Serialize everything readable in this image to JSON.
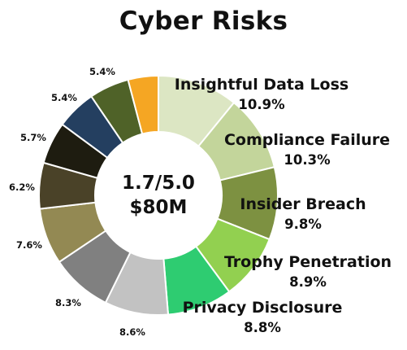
{
  "chart_data": {
    "type": "donut",
    "title": "Cyber Risks",
    "center": {
      "line1": "1.7/5.0",
      "line2": "$80M"
    },
    "slices": [
      {
        "name": "Insightful Data Loss",
        "value": 10.9,
        "label": "10.9%",
        "color": "#dce6c3"
      },
      {
        "name": "Compliance Failure",
        "value": 10.3,
        "label": "10.3%",
        "color": "#c3d59b"
      },
      {
        "name": "Insider Breach",
        "value": 9.8,
        "label": "9.8%",
        "color": "#7d9141"
      },
      {
        "name": "Trophy Penetration",
        "value": 8.9,
        "label": "8.9%",
        "color": "#92d050"
      },
      {
        "name": "Privacy Disclosure",
        "value": 8.8,
        "label": "8.8%",
        "color": "#2ecc71"
      },
      {
        "name": "",
        "value": 8.6,
        "label": "8.6%",
        "color": "#c2c2c2"
      },
      {
        "name": "",
        "value": 8.3,
        "label": "8.3%",
        "color": "#808080"
      },
      {
        "name": "",
        "value": 7.6,
        "label": "7.6%",
        "color": "#938953"
      },
      {
        "name": "",
        "value": 6.2,
        "label": "6.2%",
        "color": "#4a4228"
      },
      {
        "name": "",
        "value": 5.7,
        "label": "5.7%",
        "color": "#1e1c10"
      },
      {
        "name": "",
        "value": 5.4,
        "label": "5.4%",
        "color": "#243f60"
      },
      {
        "name": "",
        "value": 5.4,
        "label": "5.4%",
        "color": "#4f6228"
      },
      {
        "name": "",
        "value": 4.1,
        "label": "",
        "color": "#f5a623"
      }
    ]
  }
}
